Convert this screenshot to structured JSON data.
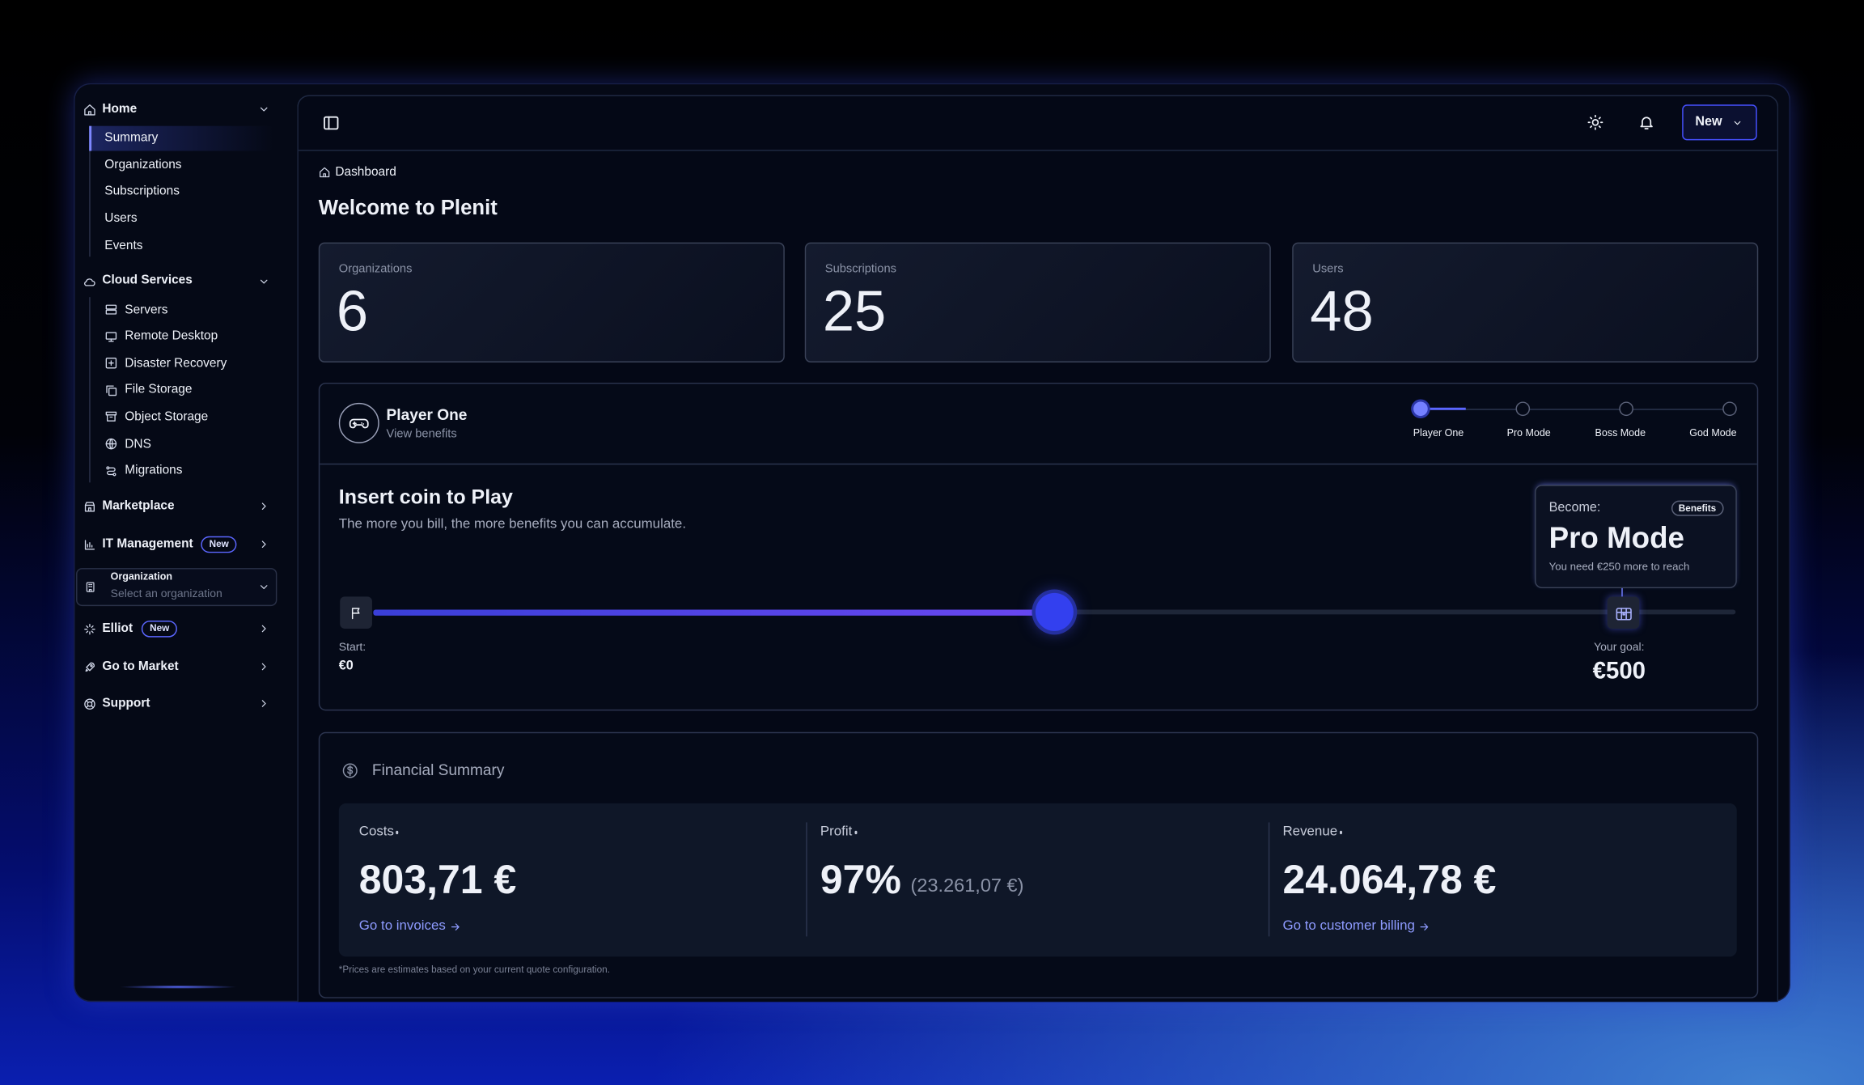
{
  "sidebar": {
    "home": {
      "label": "Home",
      "items": [
        "Summary",
        "Organizations",
        "Subscriptions",
        "Users",
        "Events"
      ]
    },
    "cloud_services": {
      "label": "Cloud Services",
      "items": [
        "Servers",
        "Remote Desktop",
        "Disaster Recovery",
        "File Storage",
        "Object Storage",
        "DNS",
        "Migrations"
      ]
    },
    "marketplace": "Marketplace",
    "it_management": {
      "label": "IT Management",
      "badge": "New"
    },
    "organization": {
      "label": "Organization",
      "placeholder": "Select an organization"
    },
    "elliot": {
      "label": "Elliot",
      "badge": "New"
    },
    "go_to_market": "Go to Market",
    "support": "Support"
  },
  "topbar": {
    "new_button": "New"
  },
  "breadcrumb": "Dashboard",
  "title": "Welcome to Plenit",
  "stats": [
    {
      "label": "Organizations",
      "value": 6
    },
    {
      "label": "Subscriptions",
      "value": 25
    },
    {
      "label": "Users",
      "value": 48
    }
  ],
  "tier": {
    "name": "Player One",
    "subtitle": "View benefits",
    "steps": [
      "Player One",
      "Pro Mode",
      "Boss Mode",
      "God Mode"
    ]
  },
  "progress": {
    "title": "Insert coin to Play",
    "description": "The more you bill, the more benefits you can accumulate.",
    "start_label": "Start:",
    "start_value": "€0",
    "goal_label": "Your goal:",
    "goal_value": "€500",
    "become_label": "Become:",
    "badge": "Benefits",
    "next_tier": "Pro Mode",
    "note": "You need €250 more to reach"
  },
  "financial": {
    "title": "Financial Summary",
    "items": [
      {
        "label": "Costs",
        "value": "803,71 €",
        "link": "Go to invoices"
      },
      {
        "label": "Profit",
        "value": "97%",
        "detail": "(23.261,07 €)"
      },
      {
        "label": "Revenue",
        "value": "24.064,78 €",
        "link": "Go to customer billing"
      }
    ],
    "footnote": "*Prices are estimates based on your current quote configuration."
  }
}
